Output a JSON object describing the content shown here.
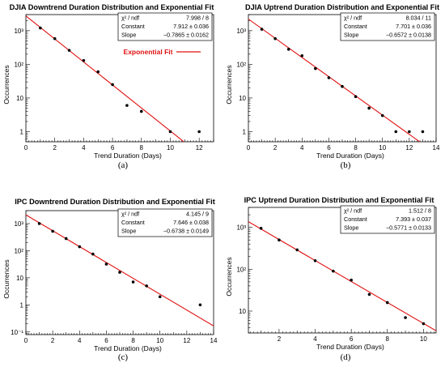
{
  "chart_data": [
    {
      "type": "scatter",
      "panel": "(a)",
      "title": "DJIA Downtrend Duration Distribution and Exponential Fit",
      "xlabel": "Trend Duration (Days)",
      "ylabel": "Occurrences",
      "xlim": [
        0,
        13
      ],
      "ylim": [
        0.5,
        3000
      ],
      "ylog": true,
      "xticks": [
        0,
        2,
        4,
        6,
        8,
        10,
        12
      ],
      "yticks": [
        {
          "v": 1,
          "label": "1"
        },
        {
          "v": 10,
          "label": "10"
        },
        {
          "v": 100,
          "label": "10²"
        },
        {
          "v": 1000,
          "label": "10³"
        }
      ],
      "x": [
        1,
        2,
        3,
        4,
        5,
        6,
        7,
        8,
        10,
        12
      ],
      "y": [
        1200,
        580,
        260,
        130,
        60,
        25,
        6,
        4,
        1,
        1
      ],
      "fit": {
        "constant": 7.912,
        "slope": -0.7865
      },
      "stats": [
        {
          "label": "χ² / ndf",
          "value": "7.998 / 8"
        },
        {
          "label": "Constant",
          "value": "7.912 ± 0.036"
        },
        {
          "label": "Slope",
          "value": "−0.7865 ± 0.0162"
        }
      ],
      "legend": "Exponential Fit",
      "caption": "(a)"
    },
    {
      "type": "scatter",
      "panel": "(b)",
      "title": "DJIA Uptrend Duration Distribution and Exponential Fit",
      "xlabel": "Trend Duration (Days)",
      "ylabel": "Occurrences",
      "xlim": [
        0,
        14
      ],
      "ylim": [
        0.5,
        3000
      ],
      "ylog": true,
      "xticks": [
        0,
        2,
        4,
        6,
        8,
        10,
        12,
        14
      ],
      "yticks": [
        {
          "v": 1,
          "label": "1"
        },
        {
          "v": 10,
          "label": "10"
        },
        {
          "v": 100,
          "label": "10²"
        },
        {
          "v": 1000,
          "label": "10³"
        }
      ],
      "x": [
        1,
        2,
        3,
        4,
        5,
        6,
        7,
        8,
        9,
        10,
        11,
        12,
        13
      ],
      "y": [
        1100,
        580,
        280,
        180,
        75,
        40,
        22,
        11,
        5,
        3,
        1,
        1,
        1
      ],
      "fit": {
        "constant": 7.701,
        "slope": -0.6572
      },
      "stats": [
        {
          "label": "χ² / ndf",
          "value": "8.034 / 11"
        },
        {
          "label": "Constant",
          "value": "7.701 ± 0.036"
        },
        {
          "label": "Slope",
          "value": "−0.6572 ± 0.0138"
        }
      ],
      "caption": "(b)"
    },
    {
      "type": "scatter",
      "panel": "(c)",
      "title": "IPC Downtrend Duration Distribution and Exponential Fit",
      "xlabel": "Trend Duration (Days)",
      "ylabel": "Occurrences",
      "xlim": [
        0,
        14
      ],
      "ylim": [
        0.08,
        3000
      ],
      "ylog": true,
      "xticks": [
        0,
        2,
        4,
        6,
        8,
        10,
        12,
        14
      ],
      "yticks": [
        {
          "v": 0.1,
          "label": "10⁻¹"
        },
        {
          "v": 1,
          "label": "1"
        },
        {
          "v": 10,
          "label": "10"
        },
        {
          "v": 100,
          "label": "10²"
        },
        {
          "v": 1000,
          "label": "10³"
        }
      ],
      "x": [
        1,
        2,
        3,
        4,
        5,
        6,
        7,
        8,
        9,
        10,
        13
      ],
      "y": [
        1000,
        520,
        280,
        140,
        75,
        32,
        16,
        7,
        5,
        2,
        1
      ],
      "fit": {
        "constant": 7.646,
        "slope": -0.6738
      },
      "stats": [
        {
          "label": "χ² / ndf",
          "value": "4.145 / 9"
        },
        {
          "label": "Constant",
          "value": "7.646 ± 0.038"
        },
        {
          "label": "Slope",
          "value": "−0.6738 ± 0.0149"
        }
      ],
      "caption": "(c)"
    },
    {
      "type": "scatter",
      "panel": "(d)",
      "title": "IPC Uptrend Duration Distribution and Exponential Fit",
      "xlabel": "Trend Duration (Days)",
      "ylabel": "Occurrences",
      "xlim": [
        0.3,
        10.7
      ],
      "ylim": [
        3,
        3000
      ],
      "ylog": true,
      "xticks": [
        2,
        4,
        6,
        8,
        10
      ],
      "yticks": [
        {
          "v": 10,
          "label": "10"
        },
        {
          "v": 100,
          "label": "10²"
        },
        {
          "v": 1000,
          "label": "10³"
        }
      ],
      "x": [
        1,
        2,
        3,
        4,
        5,
        6,
        7,
        8,
        9,
        10
      ],
      "y": [
        950,
        500,
        290,
        160,
        90,
        55,
        25,
        16,
        7,
        5
      ],
      "fit": {
        "constant": 7.393,
        "slope": -0.5771
      },
      "stats": [
        {
          "label": "χ² / ndf",
          "value": "1.512 / 8"
        },
        {
          "label": "Constant",
          "value": "7.393 ± 0.037"
        },
        {
          "label": "Slope",
          "value": "−0.5771 ± 0.0133"
        }
      ],
      "caption": "(d)"
    }
  ],
  "colors": {
    "fit_line": "#e01010",
    "points": "#000000",
    "axis": "#000000"
  }
}
